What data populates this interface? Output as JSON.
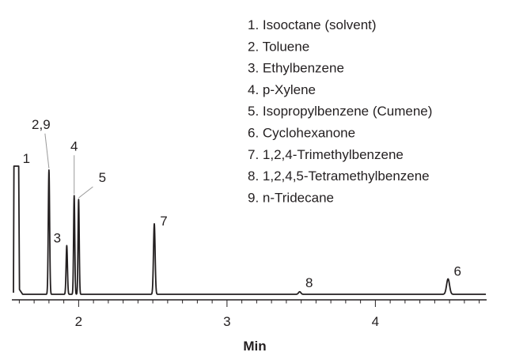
{
  "chart_data": {
    "type": "line",
    "title": "",
    "xlabel": "Min",
    "ylabel": "",
    "xlim": [
      1.55,
      4.75
    ],
    "ylim": [
      0,
      1
    ],
    "xticks": [
      2,
      3,
      4
    ],
    "grid": false,
    "line_color": "#231f20",
    "legend": {
      "placement": "top-right",
      "entries": [
        "1. Isooctane (solvent)",
        "2. Toluene",
        "3. Ethylbenzene",
        "4. p-Xylene",
        "5. Isopropylbenzene (Cumene)",
        "6. Cyclohexanone",
        "7. 1,2,4-Trimethylbenzene",
        "8. 1,2,4,5-Tetramethylbenzene",
        "9. n-Tridecane"
      ]
    },
    "peaks": [
      {
        "label": "1",
        "x": 1.58,
        "height": 1.0
      },
      {
        "label": "2,9",
        "x": 1.8,
        "height": 0.97
      },
      {
        "label": "3",
        "x": 1.92,
        "height": 0.38
      },
      {
        "label": "4",
        "x": 1.97,
        "height": 0.77
      },
      {
        "label": "5",
        "x": 2.0,
        "height": 0.74
      },
      {
        "label": "7",
        "x": 2.51,
        "height": 0.55
      },
      {
        "label": "8",
        "x": 3.49,
        "height": 0.02
      },
      {
        "label": "6",
        "x": 4.49,
        "height": 0.12
      }
    ]
  }
}
